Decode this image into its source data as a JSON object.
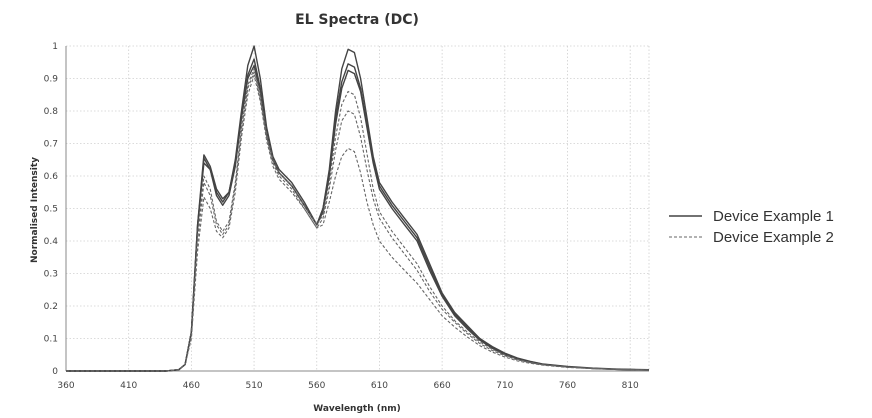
{
  "chart_data": {
    "type": "line",
    "title": "EL Spectra (DC)",
    "xlabel": "Wavelength (nm)",
    "ylabel": "Normalised Intensity",
    "xlim": [
      360,
      825
    ],
    "ylim": [
      0,
      1
    ],
    "x_ticks": [
      360,
      410,
      460,
      510,
      560,
      610,
      660,
      710,
      760,
      810
    ],
    "y_ticks": [
      0,
      0.1,
      0.2,
      0.3,
      0.4,
      0.5,
      0.6,
      0.7,
      0.8,
      0.9,
      1
    ],
    "x_tick_labels": [
      "360",
      "410",
      "460",
      "510",
      "560",
      "610",
      "660",
      "710",
      "760",
      "810"
    ],
    "y_tick_labels": [
      "0",
      "0.1",
      "0.2",
      "0.3",
      "0.4",
      "0.5",
      "0.6",
      "0.7",
      "0.8",
      "0.9",
      "1"
    ],
    "grid": true,
    "legend_position": "right",
    "x": [
      360,
      440,
      450,
      455,
      460,
      465,
      470,
      475,
      480,
      485,
      490,
      495,
      500,
      505,
      510,
      515,
      520,
      525,
      530,
      540,
      550,
      560,
      565,
      570,
      575,
      580,
      585,
      590,
      595,
      600,
      605,
      610,
      620,
      630,
      640,
      650,
      660,
      670,
      680,
      690,
      700,
      710,
      720,
      730,
      740,
      760,
      780,
      800,
      825
    ],
    "series": [
      {
        "name": "Device Example 1",
        "style": "solid",
        "values": [
          0,
          0,
          0.004,
          0.02,
          0.12,
          0.45,
          0.64,
          0.62,
          0.55,
          0.52,
          0.55,
          0.65,
          0.8,
          0.94,
          1.0,
          0.9,
          0.75,
          0.66,
          0.62,
          0.58,
          0.52,
          0.45,
          0.5,
          0.62,
          0.8,
          0.93,
          0.99,
          0.98,
          0.9,
          0.78,
          0.66,
          0.58,
          0.52,
          0.47,
          0.42,
          0.33,
          0.24,
          0.18,
          0.14,
          0.1,
          0.075,
          0.055,
          0.04,
          0.03,
          0.022,
          0.014,
          0.009,
          0.006,
          0.004
        ]
      },
      {
        "name": "",
        "style": "solid",
        "values": [
          0,
          0,
          0.004,
          0.02,
          0.12,
          0.45,
          0.665,
          0.63,
          0.56,
          0.53,
          0.55,
          0.64,
          0.78,
          0.9,
          0.94,
          0.86,
          0.73,
          0.65,
          0.61,
          0.57,
          0.51,
          0.45,
          0.49,
          0.6,
          0.76,
          0.87,
          0.925,
          0.915,
          0.86,
          0.75,
          0.64,
          0.56,
          0.5,
          0.45,
          0.4,
          0.31,
          0.23,
          0.17,
          0.13,
          0.095,
          0.07,
          0.05,
          0.037,
          0.028,
          0.02,
          0.013,
          0.008,
          0.005,
          0.003
        ]
      },
      {
        "name": "",
        "style": "solid",
        "values": [
          0,
          0,
          0.004,
          0.02,
          0.12,
          0.44,
          0.655,
          0.62,
          0.54,
          0.51,
          0.54,
          0.63,
          0.78,
          0.91,
          0.96,
          0.87,
          0.73,
          0.65,
          0.61,
          0.57,
          0.51,
          0.45,
          0.5,
          0.61,
          0.78,
          0.89,
          0.945,
          0.935,
          0.87,
          0.76,
          0.65,
          0.57,
          0.51,
          0.46,
          0.41,
          0.32,
          0.235,
          0.175,
          0.135,
          0.1,
          0.072,
          0.052,
          0.038,
          0.029,
          0.021,
          0.013,
          0.008,
          0.005,
          0.003
        ]
      },
      {
        "name": "Device Example 2",
        "style": "dashed",
        "values": [
          0,
          0,
          0.004,
          0.02,
          0.12,
          0.42,
          0.6,
          0.56,
          0.46,
          0.43,
          0.46,
          0.58,
          0.75,
          0.88,
          0.93,
          0.85,
          0.73,
          0.65,
          0.61,
          0.57,
          0.51,
          0.45,
          0.48,
          0.58,
          0.72,
          0.82,
          0.86,
          0.85,
          0.78,
          0.67,
          0.56,
          0.49,
          0.43,
          0.38,
          0.33,
          0.26,
          0.2,
          0.155,
          0.12,
          0.09,
          0.067,
          0.05,
          0.036,
          0.027,
          0.02,
          0.012,
          0.008,
          0.005,
          0.003
        ]
      },
      {
        "name": "",
        "style": "dashed",
        "values": [
          0,
          0,
          0.004,
          0.02,
          0.11,
          0.4,
          0.58,
          0.54,
          0.45,
          0.42,
          0.45,
          0.57,
          0.74,
          0.87,
          0.92,
          0.84,
          0.72,
          0.64,
          0.6,
          0.56,
          0.5,
          0.44,
          0.47,
          0.56,
          0.68,
          0.77,
          0.8,
          0.79,
          0.72,
          0.62,
          0.53,
          0.47,
          0.41,
          0.36,
          0.31,
          0.245,
          0.19,
          0.15,
          0.115,
          0.085,
          0.063,
          0.047,
          0.034,
          0.026,
          0.019,
          0.012,
          0.008,
          0.005,
          0.003
        ]
      },
      {
        "name": "",
        "style": "dashed",
        "values": [
          0,
          0,
          0.004,
          0.02,
          0.1,
          0.37,
          0.535,
          0.5,
          0.43,
          0.41,
          0.44,
          0.55,
          0.72,
          0.85,
          0.91,
          0.83,
          0.71,
          0.63,
          0.59,
          0.55,
          0.5,
          0.44,
          0.45,
          0.52,
          0.6,
          0.66,
          0.685,
          0.675,
          0.61,
          0.52,
          0.45,
          0.4,
          0.35,
          0.31,
          0.27,
          0.22,
          0.17,
          0.135,
          0.105,
          0.078,
          0.058,
          0.043,
          0.031,
          0.024,
          0.018,
          0.011,
          0.007,
          0.005,
          0.003
        ]
      }
    ],
    "colors": {
      "solid": "#444444",
      "dashed": "#666666",
      "grid": "#cfcfcf"
    }
  }
}
